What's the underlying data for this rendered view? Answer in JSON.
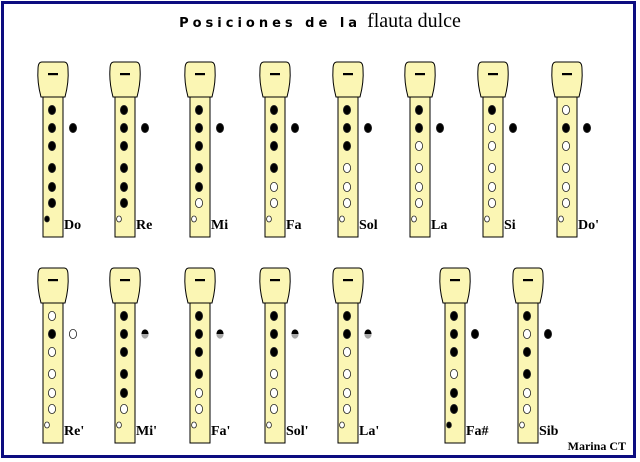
{
  "title": {
    "part1": "Posiciones de la",
    "part2": "flauta dulce"
  },
  "author": "Marina CT",
  "colors": {
    "body": "#fbf6b4",
    "border": "#0c0c80",
    "half_hole_bottom": "#a8a8a8"
  },
  "legend_states": {
    "c": "closed",
    "o": "open",
    "h": "half"
  },
  "rows": [
    [
      {
        "note": "Do",
        "thumb": "c",
        "holes": [
          "c",
          "c",
          "c",
          "c",
          "c",
          "c"
        ],
        "bell": "c"
      },
      {
        "note": "Re",
        "thumb": "c",
        "holes": [
          "c",
          "c",
          "c",
          "c",
          "c",
          "c"
        ],
        "bell": "o"
      },
      {
        "note": "Mi",
        "thumb": "c",
        "holes": [
          "c",
          "c",
          "c",
          "c",
          "c",
          "o"
        ],
        "bell": "o"
      },
      {
        "note": "Fa",
        "thumb": "c",
        "holes": [
          "c",
          "c",
          "c",
          "c",
          "o",
          "o"
        ],
        "bell": "o"
      },
      {
        "note": "Sol",
        "thumb": "c",
        "holes": [
          "c",
          "c",
          "c",
          "o",
          "o",
          "o"
        ],
        "bell": "o"
      },
      {
        "note": "La",
        "thumb": "c",
        "holes": [
          "c",
          "c",
          "o",
          "o",
          "o",
          "o"
        ],
        "bell": "o"
      },
      {
        "note": "Si",
        "thumb": "c",
        "holes": [
          "c",
          "o",
          "o",
          "o",
          "o",
          "o"
        ],
        "bell": "o"
      },
      {
        "note": "Do'",
        "thumb": "c",
        "holes": [
          "o",
          "c",
          "o",
          "o",
          "o",
          "o"
        ],
        "bell": "o"
      }
    ],
    [
      {
        "note": "Re'",
        "thumb": "o",
        "holes": [
          "o",
          "c",
          "o",
          "o",
          "o",
          "o"
        ],
        "bell": "o"
      },
      {
        "note": "Mi'",
        "thumb": "h",
        "holes": [
          "c",
          "c",
          "c",
          "c",
          "c",
          "o"
        ],
        "bell": "o"
      },
      {
        "note": "Fa'",
        "thumb": "h",
        "holes": [
          "c",
          "c",
          "c",
          "c",
          "o",
          "o"
        ],
        "bell": "o"
      },
      {
        "note": "Sol'",
        "thumb": "h",
        "holes": [
          "c",
          "c",
          "c",
          "o",
          "o",
          "o"
        ],
        "bell": "o"
      },
      {
        "note": "La'",
        "thumb": "h",
        "holes": [
          "c",
          "c",
          "o",
          "o",
          "o",
          "o"
        ],
        "bell": "o"
      },
      {
        "note": "Fa#",
        "thumb": "c",
        "holes": [
          "c",
          "c",
          "c",
          "o",
          "c",
          "c"
        ],
        "bell": "c"
      },
      {
        "note": "Sib",
        "thumb": "c",
        "holes": [
          "c",
          "o",
          "c",
          "c",
          "o",
          "o"
        ],
        "bell": "o"
      }
    ]
  ]
}
